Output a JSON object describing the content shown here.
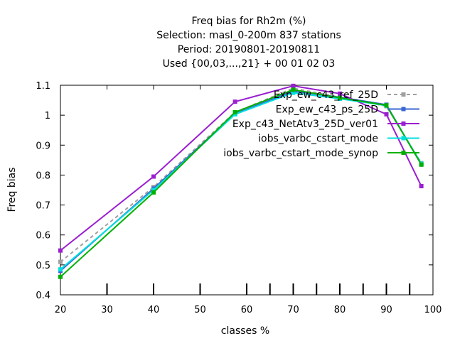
{
  "chart_data": {
    "type": "line",
    "title_lines": [
      "Freq bias  for Rh2m (%)",
      "Selection: masl_0-200m    837 stations",
      "Period: 20190801-20190811",
      "Used {00,03,...,21} + 00 01 02 03"
    ],
    "xlabel": "classes %",
    "ylabel": "Freq bias",
    "xlim": [
      20,
      100
    ],
    "ylim": [
      0.4,
      1.1
    ],
    "xticks": [
      20,
      30,
      40,
      50,
      60,
      70,
      80,
      90,
      100
    ],
    "yticks": [
      0.4,
      0.5,
      0.6,
      0.7,
      0.8,
      0.9,
      1,
      1.1
    ],
    "bottom_bars": [
      30,
      40,
      50,
      60,
      65,
      70,
      75,
      80,
      85,
      90,
      95
    ],
    "grid": false,
    "legend_position": "top-right",
    "series": [
      {
        "name": "Exp_ew_c43_ref_25D",
        "color": "#a0a0a0",
        "dashed": true,
        "x": [
          20,
          40,
          57.5,
          70,
          80,
          90,
          97.5
        ],
        "values": [
          0.51,
          0.76,
          1.01,
          1.09,
          1.06,
          1.03,
          0.84
        ]
      },
      {
        "name": "Exp_ew_c43_ps_25D",
        "color": "#3a66d0",
        "dashed": false,
        "x": [
          20,
          40,
          57.5,
          70,
          80,
          90,
          97.5
        ],
        "values": [
          0.48,
          0.755,
          1.005,
          1.08,
          1.06,
          1.035,
          0.835
        ]
      },
      {
        "name": "Exp_c43_NetAtv3_25D_ver01",
        "color": "#9a1fd0",
        "dashed": false,
        "x": [
          20,
          40,
          57.5,
          70,
          80,
          90,
          97.5
        ],
        "values": [
          0.548,
          0.795,
          1.045,
          1.098,
          1.072,
          1.003,
          0.763
        ]
      },
      {
        "name": "iobs_varbc_cstart_mode",
        "color": "#00e0e0",
        "dashed": false,
        "x": [
          20,
          40,
          57.5,
          70,
          80,
          90,
          97.5
        ],
        "values": [
          0.485,
          0.75,
          1.003,
          1.075,
          1.055,
          1.032,
          0.838
        ]
      },
      {
        "name": "iobs_varbc_cstart_mode_synop",
        "color": "#00b000",
        "dashed": false,
        "x": [
          20,
          40,
          57.5,
          70,
          80,
          90,
          97.5
        ],
        "values": [
          0.46,
          0.742,
          1.01,
          1.085,
          1.058,
          1.033,
          0.835
        ]
      }
    ]
  }
}
